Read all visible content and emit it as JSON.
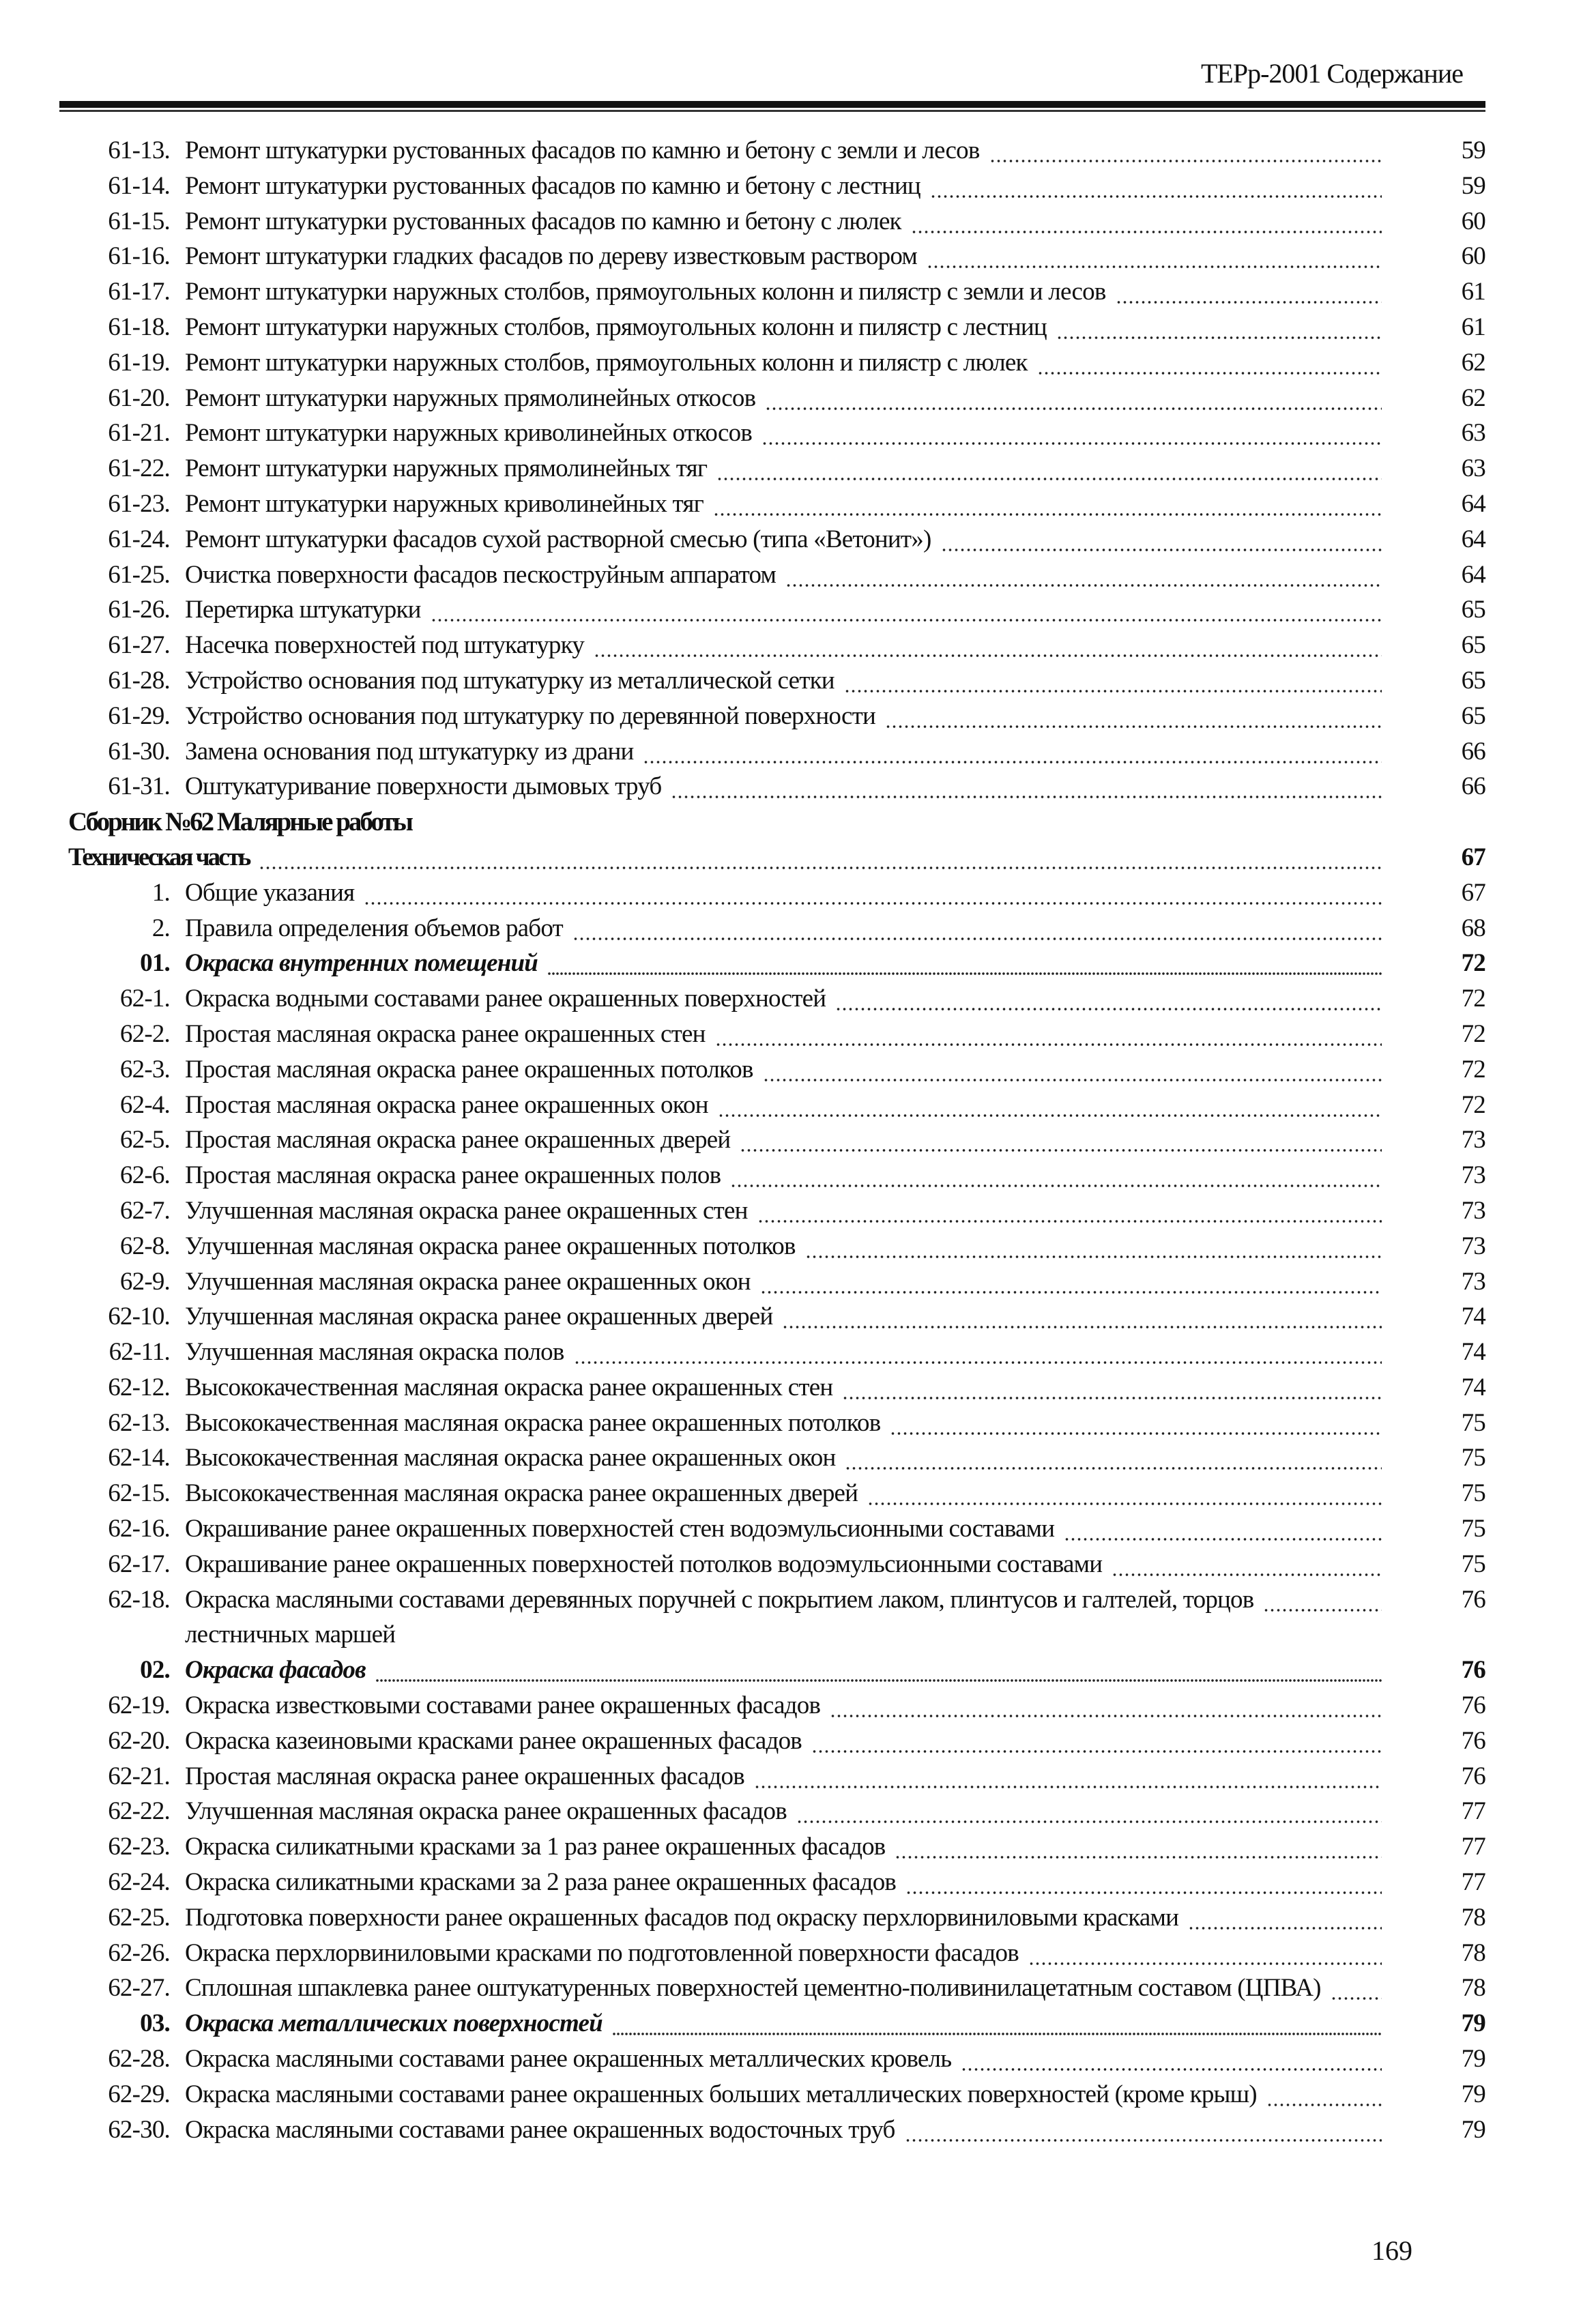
{
  "header": {
    "title": "ТЕРр-2001 Содержание"
  },
  "entries": [
    {
      "num": "61-13.",
      "title": "Ремонт штукатурки рустованных фасадов по камню и бетону с земли и лесов",
      "page": "59"
    },
    {
      "num": "61-14.",
      "title": "Ремонт штукатурки рустованных фасадов по камню и бетону с лестниц",
      "page": "59"
    },
    {
      "num": "61-15.",
      "title": "Ремонт штукатурки рустованных фасадов по камню и бетону с люлек",
      "page": "60"
    },
    {
      "num": "61-16.",
      "title": "Ремонт штукатурки гладких фасадов по дереву известковым раствором",
      "page": "60"
    },
    {
      "num": "61-17.",
      "title": "Ремонт штукатурки наружных столбов, прямоугольных колонн и пилястр с земли и лесов",
      "page": "61"
    },
    {
      "num": "61-18.",
      "title": "Ремонт штукатурки наружных столбов, прямоугольных колонн и пилястр с лестниц",
      "page": "61"
    },
    {
      "num": "61-19.",
      "title": "Ремонт штукатурки наружных столбов, прямоугольных колонн и пилястр с люлек",
      "page": "62"
    },
    {
      "num": "61-20.",
      "title": "Ремонт штукатурки наружных прямолинейных откосов",
      "page": "62"
    },
    {
      "num": "61-21.",
      "title": "Ремонт штукатурки наружных криволинейных откосов",
      "page": "63"
    },
    {
      "num": "61-22.",
      "title": "Ремонт штукатурки наружных прямолинейных тяг",
      "page": "63"
    },
    {
      "num": "61-23.",
      "title": "Ремонт штукатурки наружных криволинейных тяг",
      "page": "64"
    },
    {
      "num": "61-24.",
      "title": "Ремонт штукатурки фасадов сухой растворной смесью (типа «Ветонит»)",
      "page": "64"
    },
    {
      "num": "61-25.",
      "title": "Очистка поверхности фасадов пескоструйным аппаратом",
      "page": "64"
    },
    {
      "num": "61-26.",
      "title": "Перетирка штукатурки",
      "page": "65"
    },
    {
      "num": "61-27.",
      "title": "Насечка поверхностей под штукатурку",
      "page": "65"
    },
    {
      "num": "61-28.",
      "title": "Устройство основания под штукатурку из металлической сетки",
      "page": "65"
    },
    {
      "num": "61-29.",
      "title": "Устройство основания под штукатурку по деревянной поверхности",
      "page": "65"
    },
    {
      "num": "61-30.",
      "title": "Замена основания под штукатурку из драни",
      "page": "66"
    },
    {
      "num": "61-31.",
      "title": "Оштукатуривание поверхности дымовых труб",
      "page": "66"
    },
    {
      "kind": "heading",
      "title": "Сборник №62 Малярные работы"
    },
    {
      "kind": "tech",
      "title": "Техническая часть",
      "page": "67"
    },
    {
      "num": "1.",
      "title": "Общие указания",
      "page": "67"
    },
    {
      "num": "2.",
      "title": "Правила определения объемов работ",
      "page": "68"
    },
    {
      "kind": "section",
      "num": "01.",
      "title": "Окраска внутренних помещений",
      "page": "72"
    },
    {
      "num": "62-1.",
      "title": "Окраска водными составами ранее окрашенных поверхностей",
      "page": "72"
    },
    {
      "num": "62-2.",
      "title": "Простая масляная окраска ранее окрашенных стен",
      "page": "72"
    },
    {
      "num": "62-3.",
      "title": "Простая масляная окраска ранее окрашенных потолков",
      "page": "72"
    },
    {
      "num": "62-4.",
      "title": "Простая масляная окраска ранее окрашенных окон",
      "page": "72"
    },
    {
      "num": "62-5.",
      "title": "Простая масляная окраска ранее окрашенных дверей",
      "page": "73"
    },
    {
      "num": "62-6.",
      "title": "Простая масляная окраска ранее окрашенных полов",
      "page": "73"
    },
    {
      "num": "62-7.",
      "title": "Улучшенная масляная окраска ранее окрашенных стен",
      "page": "73"
    },
    {
      "num": "62-8.",
      "title": "Улучшенная масляная окраска ранее окрашенных потолков",
      "page": "73"
    },
    {
      "num": "62-9.",
      "title": "Улучшенная масляная окраска ранее окрашенных окон",
      "page": "73"
    },
    {
      "num": "62-10.",
      "title": "Улучшенная масляная окраска ранее окрашенных дверей",
      "page": "74"
    },
    {
      "num": "62-11.",
      "title": "Улучшенная масляная окраска полов",
      "page": "74"
    },
    {
      "num": "62-12.",
      "title": "Высококачественная масляная окраска ранее окрашенных стен",
      "page": "74"
    },
    {
      "num": "62-13.",
      "title": "Высококачественная масляная окраска ранее окрашенных потолков",
      "page": "75"
    },
    {
      "num": "62-14.",
      "title": "Высококачественная масляная окраска ранее окрашенных окон",
      "page": "75"
    },
    {
      "num": "62-15.",
      "title": "Высококачественная масляная окраска ранее окрашенных дверей",
      "page": "75"
    },
    {
      "num": "62-16.",
      "title": "Окрашивание ранее окрашенных поверхностей стен водоэмульсионными составами",
      "page": "75"
    },
    {
      "num": "62-17.",
      "title": "Окрашивание ранее окрашенных поверхностей потолков водоэмульсионными составами",
      "page": "75"
    },
    {
      "num": "62-18.",
      "title": "Окраска масляными составами деревянных поручней с покрытием лаком, плинтусов и галтелей, торцов",
      "page": "76"
    },
    {
      "kind": "cont",
      "title": "лестничных маршей"
    },
    {
      "kind": "section",
      "num": "02.",
      "title": "Окраска фасадов",
      "page": "76"
    },
    {
      "num": "62-19.",
      "title": "Окраска известковыми составами ранее окрашенных фасадов",
      "page": "76"
    },
    {
      "num": "62-20.",
      "title": "Окраска казеиновыми красками ранее окрашенных фасадов",
      "page": "76"
    },
    {
      "num": "62-21.",
      "title": "Простая масляная окраска ранее окрашенных фасадов",
      "page": "76"
    },
    {
      "num": "62-22.",
      "title": "Улучшенная масляная окраска ранее окрашенных фасадов",
      "page": "77"
    },
    {
      "num": "62-23.",
      "title": "Окраска силикатными красками за 1 раз ранее окрашенных фасадов",
      "page": "77"
    },
    {
      "num": "62-24.",
      "title": "Окраска силикатными красками за 2 раза ранее окрашенных фасадов",
      "page": "77"
    },
    {
      "num": "62-25.",
      "title": "Подготовка поверхности ранее окрашенных фасадов под окраску перхлорвиниловыми красками",
      "page": "78"
    },
    {
      "num": "62-26.",
      "title": "Окраска перхлорвиниловыми красками по подготовленной поверхности фасадов",
      "page": "78"
    },
    {
      "num": "62-27.",
      "title": "Сплошная шпаклевка ранее оштукатуренных поверхностей цементно-поливинилацетатным составом (ЦПВА)",
      "page": "78"
    },
    {
      "kind": "section",
      "num": "03.",
      "title": "Окраска металлических поверхностей",
      "page": "79"
    },
    {
      "num": "62-28.",
      "title": "Окраска масляными составами ранее окрашенных металлических кровель",
      "page": "79"
    },
    {
      "num": "62-29.",
      "title": "Окраска масляными составами ранее окрашенных больших металлических поверхностей (кроме крыш)",
      "page": "79"
    },
    {
      "num": "62-30.",
      "title": "Окраска масляными составами ранее окрашенных водосточных труб",
      "page": "79"
    }
  ],
  "footer": {
    "page_number": "169"
  }
}
